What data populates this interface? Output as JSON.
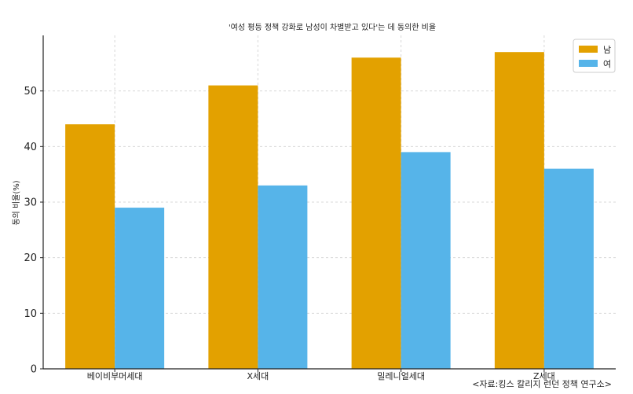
{
  "chart_data": {
    "type": "bar",
    "title": "'여성 평등 정책 강화로 남성이 차별받고 있다'는 데 동의한 비율",
    "xlabel": "",
    "ylabel": "동의 비율(%)",
    "categories": [
      "베이비부머세대",
      "X세대",
      "밀레니얼세대",
      "Z세대"
    ],
    "series": [
      {
        "name": "남",
        "values": [
          44,
          51,
          56,
          57
        ],
        "color": "#E3A100"
      },
      {
        "name": "여",
        "values": [
          29,
          33,
          39,
          36
        ],
        "color": "#56B4E9"
      }
    ],
    "ylim": [
      0,
      60
    ],
    "yticks": [
      0,
      10,
      20,
      30,
      40,
      50
    ],
    "grid": true,
    "legend_position": "top-right",
    "source_note": "<자료:킹스 칼리지 런던 정책 연구소>"
  }
}
